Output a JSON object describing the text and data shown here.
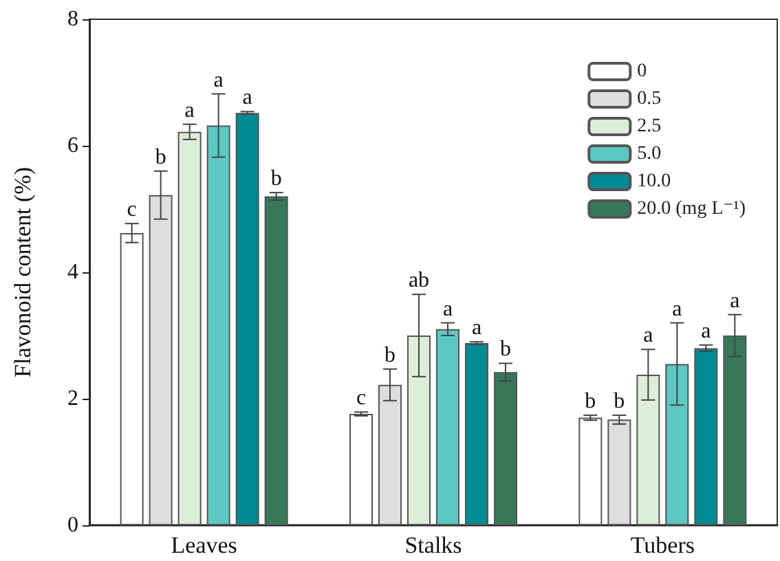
{
  "chart_data": {
    "type": "bar",
    "ylabel": "Flavonoid content (%)",
    "categories": [
      "Leaves",
      "Stalks",
      "Tubers"
    ],
    "ylim": [
      0,
      8
    ],
    "yticks": [
      0,
      2,
      4,
      6,
      8
    ],
    "grid": false,
    "legend": "top right",
    "series": [
      {
        "name": "0",
        "color": "#ffffff",
        "values": [
          4.62,
          1.76,
          1.7
        ],
        "errors": [
          0.15,
          0.03,
          0.04
        ],
        "value_labels": [
          "c",
          "c",
          "b"
        ]
      },
      {
        "name": "0.5",
        "color": "#e0dde0",
        "values": [
          5.22,
          2.22,
          1.67
        ],
        "errors": [
          0.38,
          0.25,
          0.07
        ],
        "value_labels": [
          "b",
          "b",
          "b"
        ]
      },
      {
        "name": "2.5",
        "color": "#dcedd8",
        "values": [
          6.22,
          3.0,
          2.38
        ],
        "errors": [
          0.12,
          0.65,
          0.4
        ],
        "value_labels": [
          "a",
          "ab",
          "a"
        ]
      },
      {
        "name": "5.0",
        "color": "#5cc8c4",
        "values": [
          6.32,
          3.1,
          2.55
        ],
        "errors": [
          0.5,
          0.1,
          0.65
        ],
        "value_labels": [
          "a",
          "a",
          "a"
        ]
      },
      {
        "name": "10.0",
        "color": "#008b94",
        "values": [
          6.52,
          2.88,
          2.8
        ],
        "errors": [
          0.02,
          0.02,
          0.05
        ],
        "value_labels": [
          "a",
          "a",
          "a"
        ]
      },
      {
        "name": "20.0 (mg L⁻¹)",
        "color": "#37785a",
        "values": [
          5.2,
          2.42,
          3.0
        ],
        "errors": [
          0.06,
          0.14,
          0.33
        ],
        "value_labels": [
          "b",
          "b",
          "a"
        ]
      }
    ]
  }
}
